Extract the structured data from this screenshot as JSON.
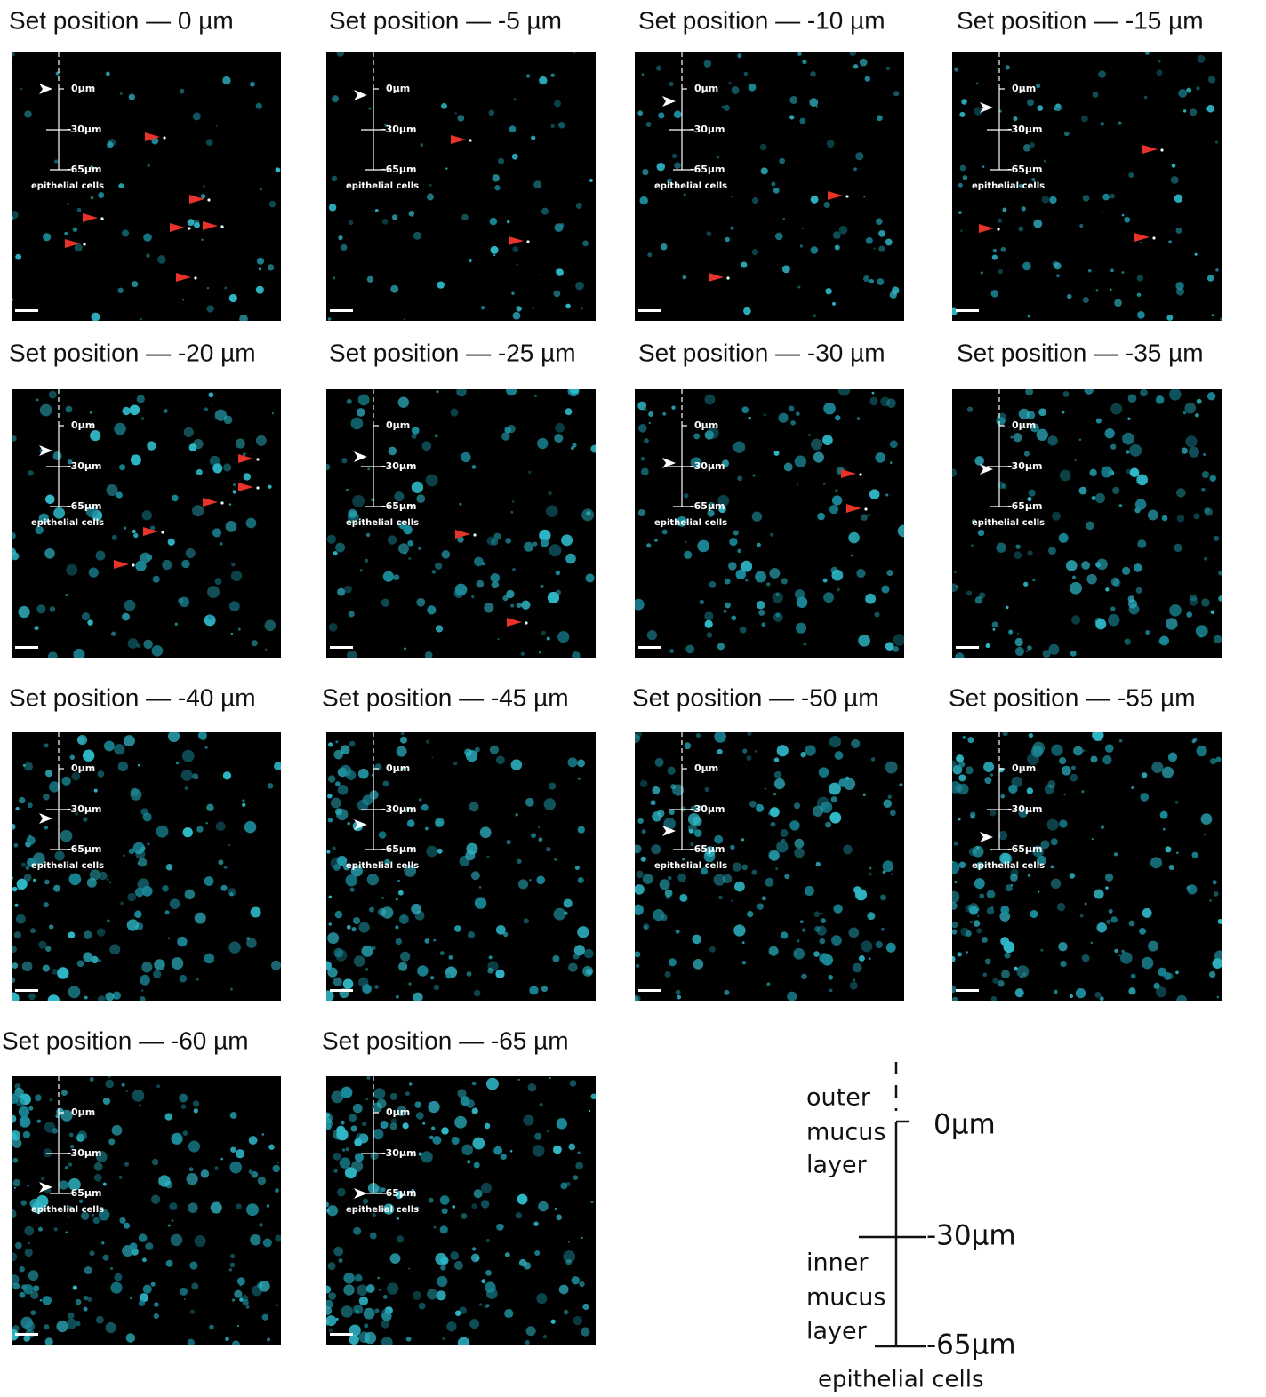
{
  "panels": [
    {
      "title": "Set position — 0 µm"
    },
    {
      "title": "Set position  —  -5 µm"
    },
    {
      "title": "Set position  —  -10 µm"
    },
    {
      "title": "Set position —  -15 µm"
    },
    {
      "title": "Set position  —  -20 µm"
    },
    {
      "title": "Set position  —  -25 µm"
    },
    {
      "title": "Set position  —  -30 µm"
    },
    {
      "title": "Set position —  -35 µm"
    },
    {
      "title": "Set position  —  -40 µm"
    },
    {
      "title": "Set position  —  -45 µm"
    },
    {
      "title": "Set position  —  -50 µm"
    },
    {
      "title": "Set position  —  -55 µm"
    },
    {
      "title": "Set position  —  -60 µm"
    },
    {
      "title": "Set position —  -65 µm"
    }
  ],
  "inset": {
    "labels": [
      "0µm",
      "-30µm",
      "-65µm"
    ],
    "caption": "epithelial cells"
  },
  "legend": {
    "outer": [
      "outer",
      "mucus",
      "layer"
    ],
    "inner": [
      "inner",
      "mucus",
      "layer"
    ],
    "labels": [
      "0µm",
      "-30µm",
      "-65µm"
    ],
    "caption": "epithelial cells"
  }
}
